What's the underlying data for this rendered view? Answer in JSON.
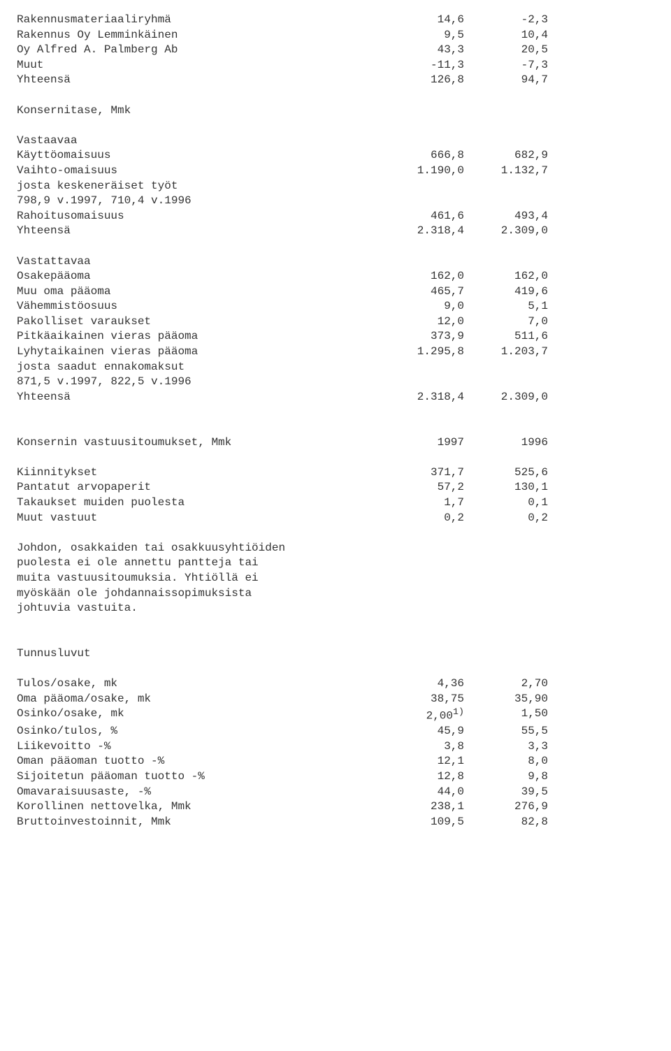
{
  "sections": {
    "top": [
      {
        "label": "Rakennusmateriaaliryhmä",
        "c1": "14,6",
        "c2": "-2,3"
      },
      {
        "label": "Rakennus Oy Lemminkäinen",
        "c1": "9,5",
        "c2": "10,4"
      },
      {
        "label": "Oy Alfred A. Palmberg Ab",
        "c1": "43,3",
        "c2": "20,5"
      },
      {
        "label": "Muut",
        "c1": "-11,3",
        "c2": "-7,3"
      },
      {
        "label": "Yhteensä",
        "c1": "126,8",
        "c2": "94,7"
      }
    ],
    "konsernitase_title": "Konsernitase, Mmk",
    "vastaavaa_title": "Vastaavaa",
    "vastaavaa": [
      {
        "label": "Käyttöomaisuus",
        "c1": "666,8",
        "c2": "682,9"
      },
      {
        "label": "Vaihto-omaisuus",
        "c1": "1.190,0",
        "c2": "1.132,7"
      },
      {
        "label": "josta keskeneräiset työt",
        "c1": "",
        "c2": ""
      },
      {
        "label": "798,9 v.1997, 710,4 v.1996",
        "c1": "",
        "c2": ""
      },
      {
        "label": "Rahoitusomaisuus",
        "c1": "461,6",
        "c2": "493,4"
      },
      {
        "label": "Yhteensä",
        "c1": "2.318,4",
        "c2": "2.309,0"
      }
    ],
    "vastattavaa_title": "Vastattavaa",
    "vastattavaa": [
      {
        "label": "Osakepääoma",
        "c1": "162,0",
        "c2": "162,0"
      },
      {
        "label": "Muu oma pääoma",
        "c1": "465,7",
        "c2": "419,6"
      },
      {
        "label": "Vähemmistöosuus",
        "c1": "9,0",
        "c2": "5,1"
      },
      {
        "label": "Pakolliset varaukset",
        "c1": "12,0",
        "c2": "7,0"
      },
      {
        "label": "Pitkäaikainen vieras pääoma",
        "c1": "373,9",
        "c2": "511,6"
      },
      {
        "label": "Lyhytaikainen vieras pääoma",
        "c1": "1.295,8",
        "c2": "1.203,7"
      },
      {
        "label": "josta saadut ennakomaksut",
        "c1": "",
        "c2": ""
      },
      {
        "label": "871,5 v.1997, 822,5 v.1996",
        "c1": "",
        "c2": ""
      },
      {
        "label": "Yhteensä",
        "c1": "2.318,4",
        "c2": "2.309,0"
      }
    ],
    "vastuu_header": {
      "label": "Konsernin vastuusitoumukset, Mmk",
      "c1": "1997",
      "c2": "1996"
    },
    "vastuu": [
      {
        "label": "Kiinnitykset",
        "c1": "371,7",
        "c2": "525,6"
      },
      {
        "label": "Pantatut arvopaperit",
        "c1": "57,2",
        "c2": "130,1"
      },
      {
        "label": "Takaukset muiden puolesta",
        "c1": "1,7",
        "c2": "0,1"
      },
      {
        "label": "Muut vastuut",
        "c1": "0,2",
        "c2": "0,2"
      }
    ],
    "note_lines": [
      "Johdon, osakkaiden tai osakkuusyhtiöiden",
      "puolesta ei ole annettu pantteja tai",
      "muita vastuusitoumuksia. Yhtiöllä ei",
      "myöskään ole johdannaissopimuksista",
      "johtuvia vastuita."
    ],
    "tunnusluvut_title": "Tunnusluvut",
    "tunnusluvut": [
      {
        "label": "Tulos/osake, mk",
        "c1": "4,36",
        "c2": "2,70"
      },
      {
        "label": "Oma pääoma/osake, mk",
        "c1": "38,75",
        "c2": "35,90"
      },
      {
        "label": "Osinko/osake, mk",
        "c1_html": "2,00<sup>1)</sup>",
        "c2": "1,50"
      },
      {
        "label": "Osinko/tulos, %",
        "c1": "45,9",
        "c2": "55,5"
      },
      {
        "label": "Liikevoitto -%",
        "c1": "3,8",
        "c2": "3,3"
      },
      {
        "label": "Oman pääoman tuotto -%",
        "c1": "12,1",
        "c2": "8,0"
      },
      {
        "label": "Sijoitetun pääoman tuotto -%",
        "c1": "12,8",
        "c2": "9,8"
      },
      {
        "label": "Omavaraisuusaste, -%",
        "c1": "44,0",
        "c2": "39,5"
      },
      {
        "label": "Korollinen nettovelka, Mmk",
        "c1": "238,1",
        "c2": "276,9"
      },
      {
        "label": "Bruttoinvestoinnit, Mmk",
        "c1": "109,5",
        "c2": "82,8"
      }
    ]
  }
}
